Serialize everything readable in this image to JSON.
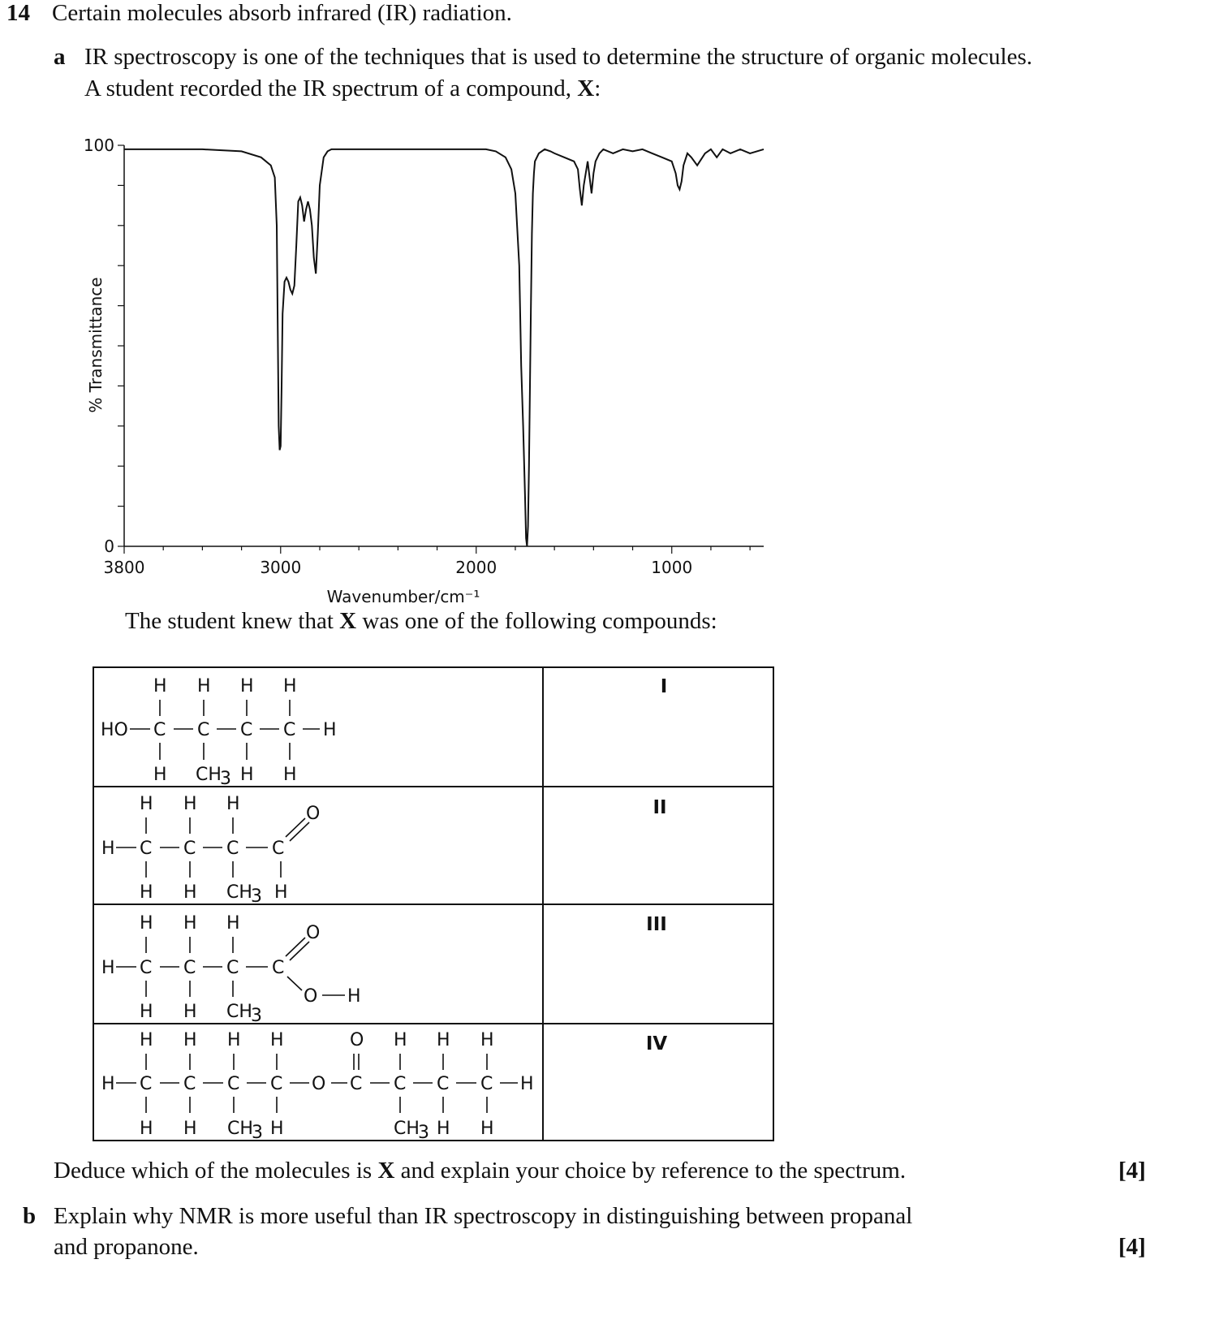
{
  "question": {
    "number": "14",
    "stem": "Certain molecules absorb infrared (IR) radiation."
  },
  "part_a": {
    "letter": "a",
    "line1": "IR spectroscopy is one of the techniques that is used to determine the structure of organic molecules.",
    "line2_prefix": "A student recorded the IR spectrum of a compound, ",
    "line2_bold": "X",
    "line2_suffix": ":",
    "following_prefix": "The student knew that ",
    "following_bold": "X",
    "following_suffix": " was one of the following compounds:",
    "deduce_prefix": "Deduce which of the molecules is ",
    "deduce_bold": "X",
    "deduce_suffix": " and explain your choice by reference to the spectrum.",
    "marks": "[4]"
  },
  "part_b": {
    "letter": "b",
    "line1": "Explain why NMR is more useful than IR spectroscopy in distinguishing between propanal",
    "line2": "and propanone.",
    "marks": "[4]"
  },
  "compounds": {
    "labels": [
      "I",
      "II",
      "III",
      "IV"
    ]
  },
  "chart_data": {
    "type": "line",
    "title": "",
    "xlabel": "Wavenumber/cm⁻¹",
    "ylabel": "% Transmittance",
    "xlim": [
      3800,
      530
    ],
    "ylim": [
      0,
      100
    ],
    "xticks": [
      3800,
      3000,
      2000,
      1000
    ],
    "yticks": [
      0,
      100
    ],
    "grid": false,
    "series": [
      {
        "name": "",
        "x": [
          3800,
          3600,
          3400,
          3200,
          3100,
          3050,
          3030,
          3020,
          3015,
          3010,
          3005,
          3000,
          2995,
          2990,
          2980,
          2970,
          2960,
          2950,
          2940,
          2930,
          2920,
          2910,
          2900,
          2890,
          2880,
          2870,
          2860,
          2850,
          2840,
          2830,
          2820,
          2810,
          2800,
          2780,
          2760,
          2740,
          2720,
          2700,
          2650,
          2600,
          2500,
          2400,
          2300,
          2200,
          2100,
          2000,
          1950,
          1900,
          1850,
          1820,
          1800,
          1780,
          1770,
          1760,
          1750,
          1745,
          1740,
          1735,
          1730,
          1725,
          1720,
          1715,
          1710,
          1705,
          1700,
          1680,
          1650,
          1620,
          1600,
          1550,
          1500,
          1480,
          1470,
          1460,
          1450,
          1440,
          1430,
          1420,
          1410,
          1400,
          1390,
          1380,
          1370,
          1350,
          1300,
          1250,
          1200,
          1150,
          1100,
          1050,
          1000,
          980,
          970,
          960,
          950,
          940,
          920,
          900,
          870,
          830,
          800,
          770,
          740,
          700,
          650,
          600,
          530
        ],
        "y": [
          99,
          99,
          99,
          98.5,
          97,
          95,
          92,
          80,
          55,
          30,
          24,
          25,
          40,
          58,
          66,
          67,
          66,
          64,
          63,
          65,
          75,
          86,
          87,
          85,
          81,
          84,
          86,
          84,
          80,
          72,
          68,
          78,
          90,
          97,
          98.5,
          99,
          99,
          99,
          99,
          99,
          99,
          99,
          99,
          99,
          99,
          99,
          99,
          98.5,
          97,
          94,
          88,
          70,
          45,
          30,
          12,
          2,
          0,
          5,
          20,
          40,
          60,
          78,
          88,
          93,
          96,
          98,
          99,
          98.5,
          98,
          97,
          96,
          94,
          89,
          85,
          90,
          93,
          96,
          92,
          88,
          93,
          96,
          97,
          98,
          99,
          98,
          99,
          98.5,
          99,
          98,
          97,
          96,
          93,
          90,
          89,
          91,
          95,
          98,
          97,
          95,
          98,
          99,
          97,
          99,
          98,
          99,
          98,
          99
        ]
      }
    ]
  }
}
